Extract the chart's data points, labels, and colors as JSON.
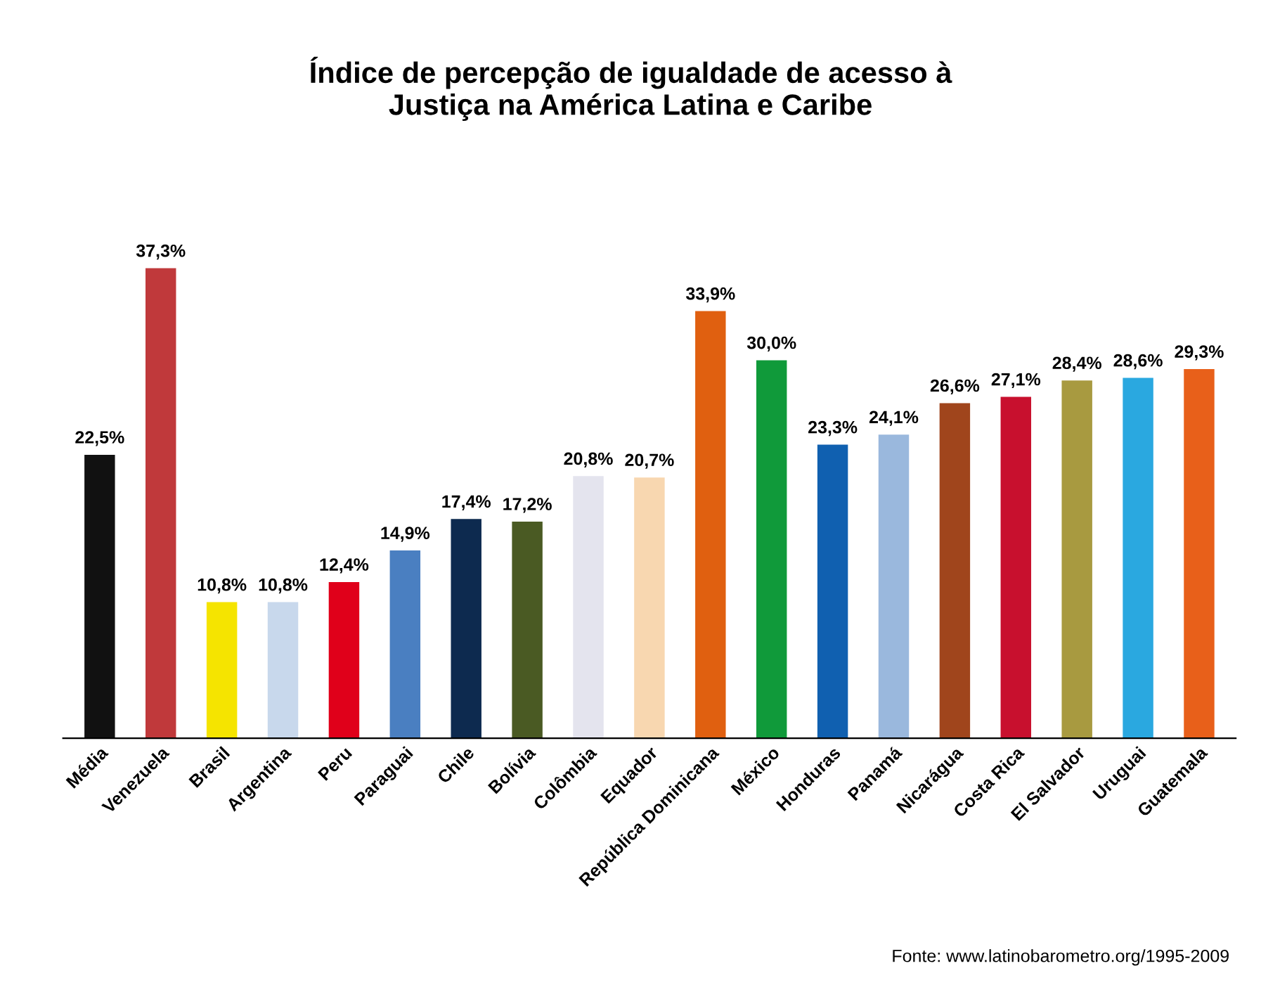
{
  "chart_data": {
    "type": "bar",
    "title": "Índice de percepção de igualdade de acesso à\nJustiça na América Latina e Caribe",
    "categories": [
      "Média",
      "Venezuela",
      "Brasil",
      "Argentina",
      "Peru",
      "Paraguai",
      "Chile",
      "Bolívia",
      "Colômbia",
      "Equador",
      "República Dominicana",
      "México",
      "Honduras",
      "Panamá",
      "Nicarágua",
      "Costa Rica",
      "El Salvador",
      "Uruguai",
      "Guatemala"
    ],
    "values": [
      22.5,
      37.3,
      10.8,
      10.8,
      12.4,
      14.9,
      17.4,
      17.2,
      20.8,
      20.7,
      33.9,
      30.0,
      23.3,
      24.1,
      26.6,
      27.1,
      28.4,
      28.6,
      29.3
    ],
    "value_labels": [
      "22,5%",
      "37,3%",
      "10,8%",
      "10,8%",
      "12,4%",
      "14,9%",
      "17,4%",
      "17,2%",
      "20,8%",
      "20,7%",
      "33,9%",
      "30,0%",
      "23,3%",
      "24,1%",
      "26,6%",
      "27,1%",
      "28,4%",
      "28,6%",
      "29,3%"
    ],
    "colors": [
      "#111111",
      "#c0393b",
      "#f5e400",
      "#c8d8ec",
      "#e0001a",
      "#4a7fc1",
      "#0d2a4f",
      "#4a5a23",
      "#e4e4ee",
      "#f8d7b0",
      "#e06010",
      "#109a3a",
      "#1060b0",
      "#9ab8dd",
      "#a0451c",
      "#c8102e",
      "#a89a40",
      "#2aa8e0",
      "#e8601a"
    ],
    "tick_labels": "x",
    "grid": false,
    "legend": false,
    "annotations": [
      "Fonte: www.latinobarometro.org/1995-2009"
    ]
  }
}
